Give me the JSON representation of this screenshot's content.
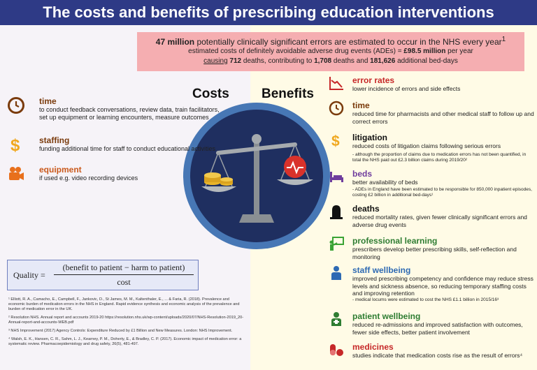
{
  "title": "The costs and benefits of prescribing education interventions",
  "stats": {
    "line1_bold": "47 million",
    "line1_rest": " potentially clinically significant errors are estimated to occur in the NHS every year",
    "line1_sup": "1",
    "line2_pre": "estimated costs of definitely avoidable adverse drug events (ADEs) = ",
    "line2_bold": "£98.5 million",
    "line2_post": " per year",
    "line3_causing": "causing",
    "line3_a": " ",
    "line3_deaths": "712",
    "line3_b": " deaths, contributing to ",
    "line3_contrib": "1,708",
    "line3_c": " deaths and ",
    "line3_beds": "181,626",
    "line3_d": " additional bed-days"
  },
  "headings": {
    "costs": "Costs",
    "benefits": "Benefits"
  },
  "costs": [
    {
      "icon": "clock-icon",
      "title": "time",
      "desc": "to conduct feedback conversations, review data, train facilitators, set up equipment or learning encounters, measure outcomes"
    },
    {
      "icon": "dollar-icon",
      "title": "staffing",
      "desc": "funding additional time for staff to conduct educational activities"
    },
    {
      "icon": "camera-icon",
      "title": "equipment",
      "desc": "if used e.g. video recording devices"
    }
  ],
  "benefits": [
    {
      "icon": "chart-down-icon",
      "title": "error rates",
      "desc": "lower incidence of errors and side effects",
      "note": ""
    },
    {
      "icon": "clock-icon",
      "title": "time",
      "desc": "reduced time for pharmacists and other medical staff to follow up and correct errors",
      "note": ""
    },
    {
      "icon": "dollar-icon",
      "title": "litigation",
      "desc": "reduced costs of litigation claims following serious errors",
      "note": "- although the proportion of claims due to medication errors has not been quantified, in total the NHS paid out £2.3 billion claims during 2019/20²"
    },
    {
      "icon": "bed-icon",
      "title": "beds",
      "desc": "better availability of beds",
      "note": "- ADEs in England have been estimated to be responsible for 850,000 inpatient episodes, costing £2 billion in additional bed-days¹"
    },
    {
      "icon": "headstone-icon",
      "title": "deaths",
      "desc": "reduced mortality rates, given fewer clinically significant errors and adverse drug events",
      "note": ""
    },
    {
      "icon": "teaching-icon",
      "title": "professional learning",
      "desc": "prescribers develop better prescribing skills, self-reflection and monitoring",
      "note": ""
    },
    {
      "icon": "person-icon",
      "title": "staff wellbeing",
      "desc": "improved prescribing competency and confidence may reduce stress levels and sickness absence, so reducing temporary staffing costs and improving retention",
      "note": "- medical locums were estimated to cost the NHS £1.1 billion in 2015/16³"
    },
    {
      "icon": "patient-icon",
      "title": "patient wellbeing",
      "desc": "reduced re-admissions and improved satisfaction with outcomes, fewer side effects, better patient involvement",
      "note": ""
    },
    {
      "icon": "pills-icon",
      "title": "medicines",
      "desc": "studies indicate that medication costs rise as the result of errors⁴",
      "note": ""
    }
  ],
  "quality": {
    "label": "Quality =",
    "numerator": "(benefit to patient  − harm to patient)",
    "denominator": "cost"
  },
  "references": [
    "¹ Elliott, R. A., Camacho, E., Campbell, F., Jankovic, D., St James, M. M., Kaltenthaler, E., ... & Faria, R. (2018). Prevalence and economic burden of medication errors in the NHS in England. Rapid evidence synthesis and economic analysis of the prevalence and burden of medication error in the UK.",
    "² Resolution NHS. Annual report and accounts 2019-20 https://resolution.nhs.uk/wp-content/uploads/2020/07/NHS-Resolution-2019_20-Annual-report-and-accounts-WEB.pdf",
    "³ NHS Improvement (2017) Agency Controls: Expenditure Reduced by £1 Billion and New Measures. London: NHS Improvement.",
    "⁴ Walsh, E. K., Hansen, C. R., Sahm, L. J., Kearney, P. M., Doherty, E., & Bradley, C. P. (2017). Economic impact of medication error: a systematic review. Pharmacoepidemiology and drug safety, 26(5), 481-497."
  ],
  "colors": {
    "banner": "#2e3a86",
    "errors_box": "#f5aeb1",
    "circle_outer": "#4777b5",
    "circle_inner": "#1f2f60"
  }
}
